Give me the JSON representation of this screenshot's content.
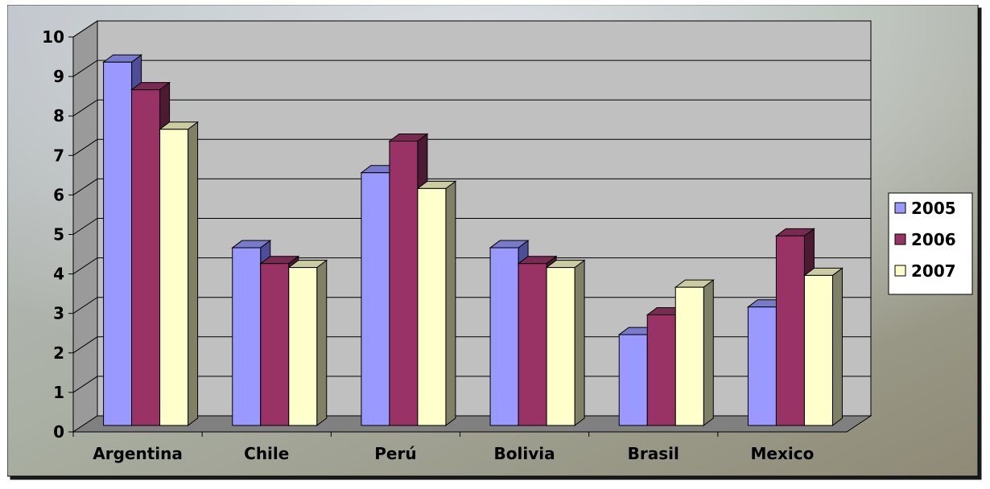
{
  "chart_data": {
    "type": "bar",
    "categories": [
      "Argentina",
      "Chile",
      "Perú",
      "Bolivia",
      "Brasil",
      "Mexico"
    ],
    "series": [
      {
        "name": "2005",
        "values": [
          9.2,
          4.5,
          6.4,
          4.5,
          2.3,
          3.0
        ]
      },
      {
        "name": "2006",
        "values": [
          8.5,
          4.1,
          7.2,
          4.1,
          2.8,
          4.8
        ]
      },
      {
        "name": "2007",
        "values": [
          7.5,
          4.0,
          6.0,
          4.0,
          3.5,
          3.8
        ]
      }
    ],
    "yticks": [
      "0",
      "1",
      "2",
      "3",
      "4",
      "5",
      "6",
      "7",
      "8",
      "9",
      "10"
    ],
    "ylim": [
      0,
      10
    ],
    "grid": true,
    "three_d": true,
    "legend_position": "right",
    "colors": {
      "2005": {
        "front": "#9999FF",
        "top": "#7A7ACC",
        "side": "#4D4D99"
      },
      "2006": {
        "front": "#993366",
        "top": "#7A2952",
        "side": "#4D1A33"
      },
      "2007": {
        "front": "#FFFFCC",
        "top": "#CCCCA3",
        "side": "#808066"
      },
      "wall": "#C0C0C0",
      "floor": "#808080"
    }
  }
}
